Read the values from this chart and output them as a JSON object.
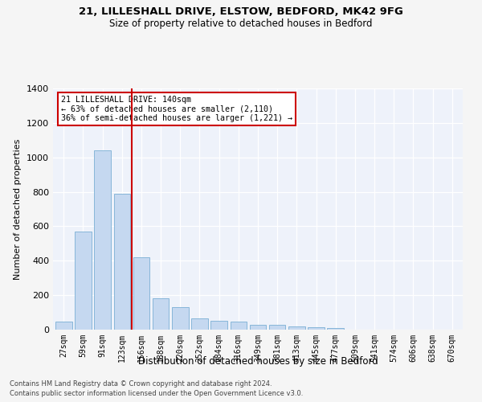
{
  "title_line1": "21, LILLESHALL DRIVE, ELSTOW, BEDFORD, MK42 9FG",
  "title_line2": "Size of property relative to detached houses in Bedford",
  "xlabel": "Distribution of detached houses by size in Bedford",
  "ylabel": "Number of detached properties",
  "categories": [
    "27sqm",
    "59sqm",
    "91sqm",
    "123sqm",
    "156sqm",
    "188sqm",
    "220sqm",
    "252sqm",
    "284sqm",
    "316sqm",
    "349sqm",
    "381sqm",
    "413sqm",
    "445sqm",
    "477sqm",
    "509sqm",
    "541sqm",
    "574sqm",
    "606sqm",
    "638sqm",
    "670sqm"
  ],
  "values": [
    45,
    570,
    1040,
    790,
    420,
    180,
    130,
    65,
    50,
    45,
    30,
    28,
    20,
    13,
    10,
    0,
    0,
    0,
    0,
    0,
    0
  ],
  "bar_color": "#c5d8f0",
  "bar_edge_color": "#7aafd4",
  "vline_color": "#cc0000",
  "annotation_text": "21 LILLESHALL DRIVE: 140sqm\n← 63% of detached houses are smaller (2,110)\n36% of semi-detached houses are larger (1,221) →",
  "annotation_box_color": "#ffffff",
  "annotation_box_edge": "#cc0000",
  "ylim": [
    0,
    1400
  ],
  "yticks": [
    0,
    200,
    400,
    600,
    800,
    1000,
    1200,
    1400
  ],
  "background_color": "#eef2fa",
  "grid_color": "#ffffff",
  "footer_line1": "Contains HM Land Registry data © Crown copyright and database right 2024.",
  "footer_line2": "Contains public sector information licensed under the Open Government Licence v3.0."
}
